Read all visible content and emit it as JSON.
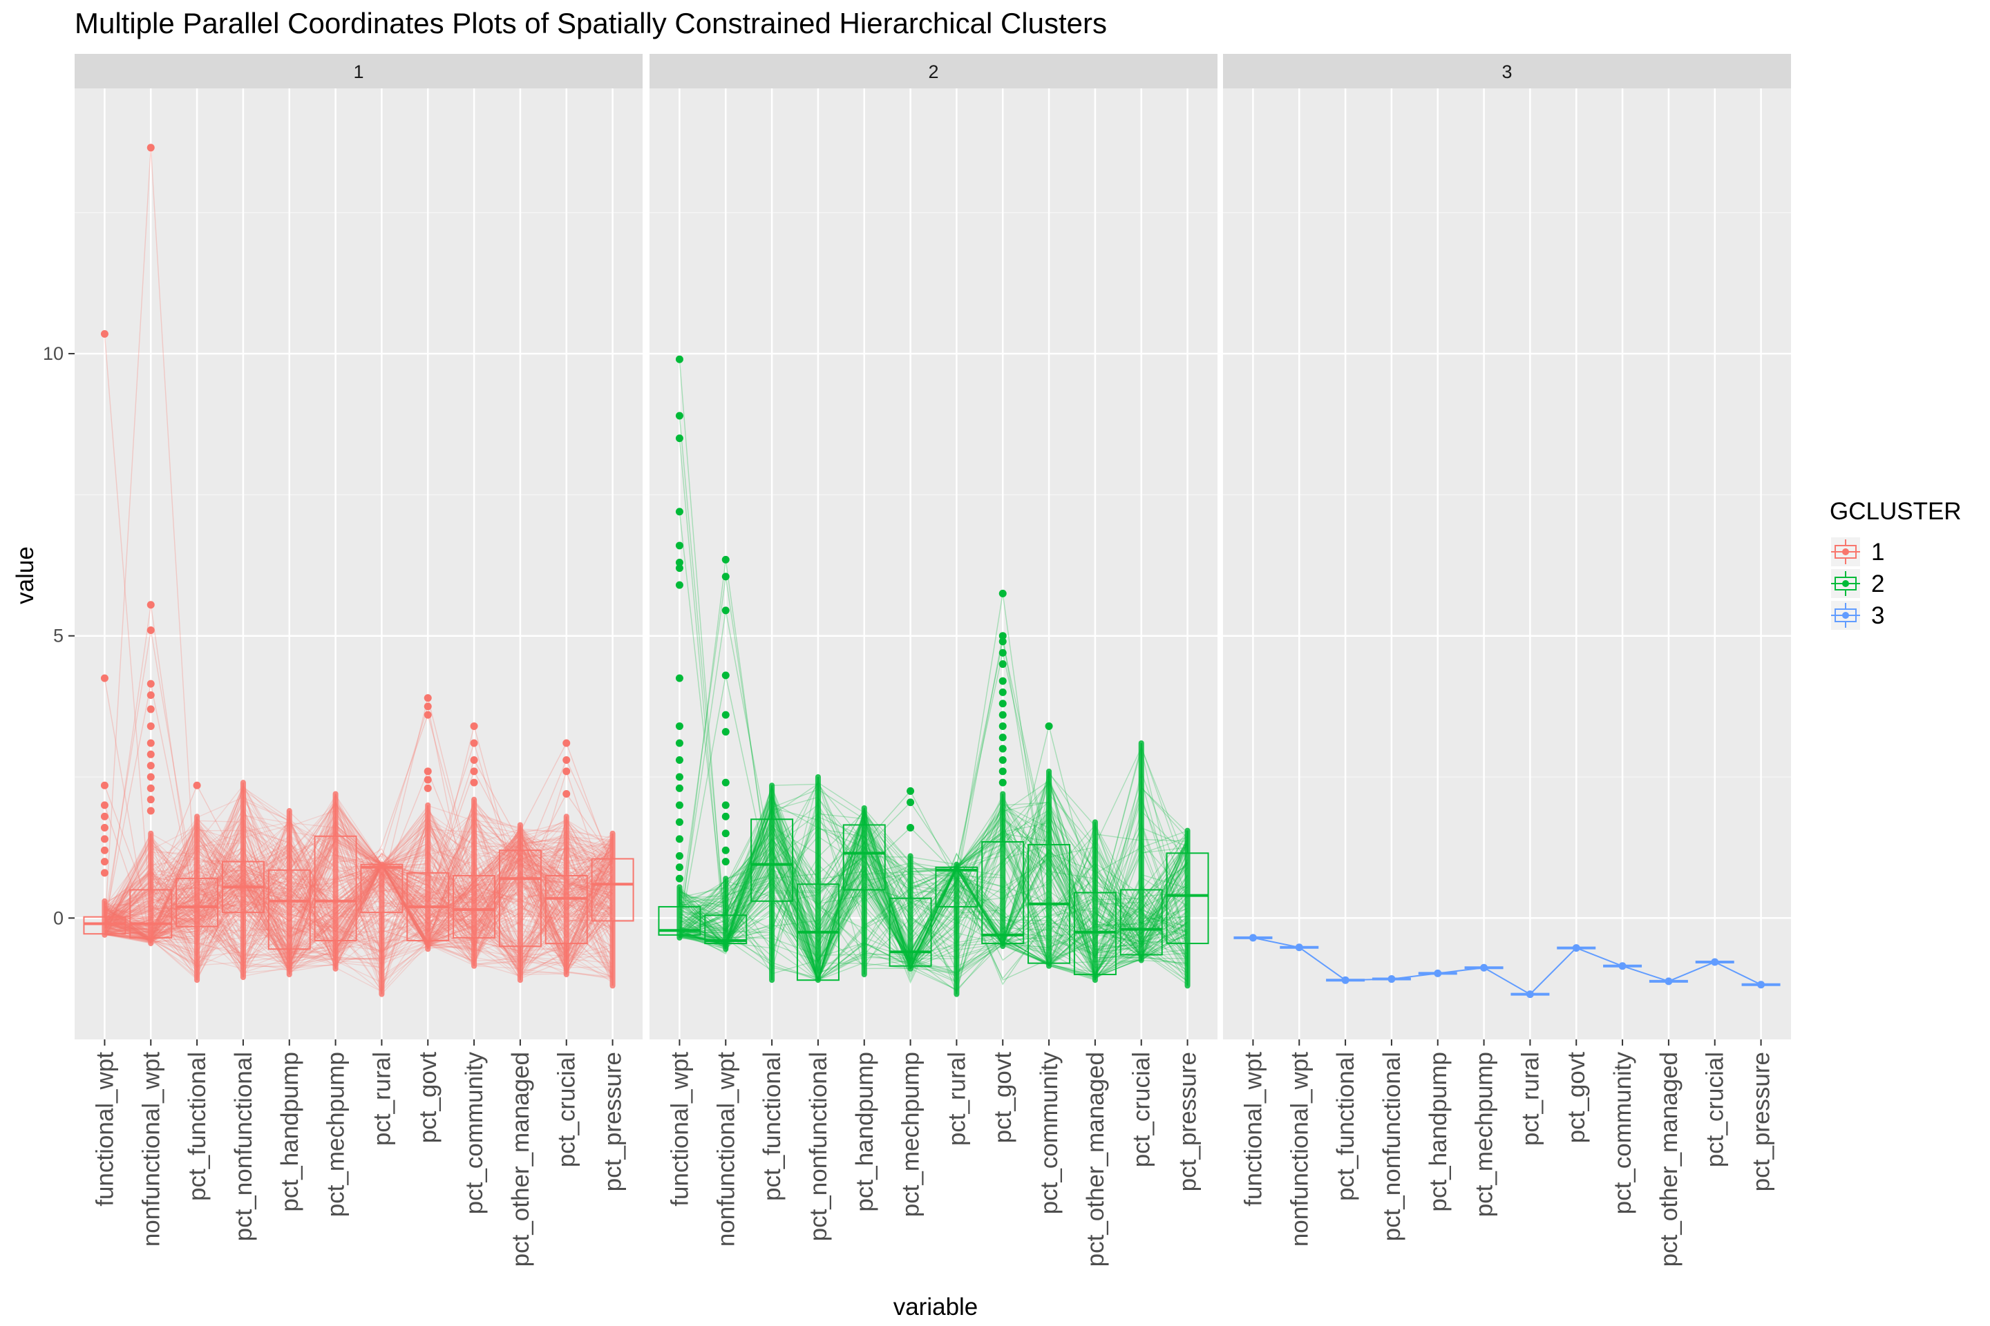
{
  "chart_data": {
    "type": "parallel_coordinates_boxplot",
    "title": "Multiple Parallel Coordinates Plots of Spatially Constrained Hierarchical Clusters",
    "xlabel": "variable",
    "ylabel": "value",
    "ylim": [
      -2.15,
      14.7
    ],
    "yticks": [
      0,
      5,
      10
    ],
    "grid": true,
    "legend": {
      "title": "GCLUSTER",
      "position": "right",
      "entries": [
        "1",
        "2",
        "3"
      ]
    },
    "colors": {
      "1": "#F8766D",
      "2": "#00BA38",
      "3": "#619CFF"
    },
    "variables": [
      "functional_wpt",
      "nonfunctional_wpt",
      "pct_functional",
      "pct_nonfunctional",
      "pct_handpump",
      "pct_mechpump",
      "pct_rural",
      "pct_govt",
      "pct_community",
      "pct_other_managed",
      "pct_crucial",
      "pct_pressure"
    ],
    "panels": [
      {
        "label": "1",
        "cluster": "1",
        "box_stats": [
          [
            -0.3,
            -0.28,
            -0.1,
            0.02,
            0.3
          ],
          [
            -0.45,
            -0.35,
            -0.1,
            0.5,
            1.5
          ],
          [
            -1.1,
            -0.15,
            0.2,
            0.7,
            1.8
          ],
          [
            -1.05,
            0.1,
            0.55,
            1.0,
            2.4
          ],
          [
            -1.0,
            -0.55,
            0.3,
            0.85,
            1.9
          ],
          [
            -0.9,
            -0.4,
            0.3,
            1.45,
            2.2
          ],
          [
            -1.35,
            0.1,
            0.9,
            0.95,
            0.95
          ],
          [
            -0.55,
            -0.4,
            0.2,
            0.8,
            2.0
          ],
          [
            -0.85,
            -0.35,
            0.15,
            0.75,
            2.1
          ],
          [
            -1.1,
            -0.5,
            0.7,
            1.2,
            1.65
          ],
          [
            -1.0,
            -0.45,
            0.35,
            0.75,
            1.8
          ],
          [
            -1.2,
            -0.05,
            0.6,
            1.05,
            1.5
          ]
        ],
        "outliers": [
          [
            10.35,
            4.25,
            2.35,
            2.0,
            1.8,
            1.6,
            1.4,
            1.2,
            1.0,
            0.8
          ],
          [
            13.65,
            5.55,
            5.1,
            4.15,
            3.95,
            3.7,
            3.4,
            3.1,
            2.9,
            2.7,
            2.5,
            2.3,
            2.1,
            1.9
          ],
          [
            2.35
          ],
          [],
          [],
          [],
          [],
          [
            3.9,
            3.75,
            3.6,
            2.6,
            2.45,
            2.3
          ],
          [
            3.4,
            3.1,
            2.8,
            2.6,
            2.4
          ],
          [],
          [
            3.1,
            2.8,
            2.6,
            2.2
          ],
          []
        ]
      },
      {
        "label": "2",
        "cluster": "2",
        "box_stats": [
          [
            -0.35,
            -0.3,
            -0.22,
            0.2,
            0.55
          ],
          [
            -0.55,
            -0.45,
            -0.4,
            0.05,
            0.7
          ],
          [
            -1.1,
            0.3,
            0.95,
            1.75,
            2.35
          ],
          [
            -1.1,
            -1.1,
            -0.25,
            0.6,
            2.5
          ],
          [
            -1.0,
            0.5,
            1.15,
            1.65,
            1.95
          ],
          [
            -0.9,
            -0.85,
            -0.6,
            0.35,
            1.1
          ],
          [
            -1.35,
            0.2,
            0.85,
            0.9,
            0.95
          ],
          [
            -0.5,
            -0.45,
            -0.3,
            1.35,
            2.2
          ],
          [
            -0.85,
            -0.8,
            0.25,
            1.3,
            2.6
          ],
          [
            -1.1,
            -1.0,
            -0.25,
            0.45,
            1.7
          ],
          [
            -0.75,
            -0.65,
            -0.2,
            0.5,
            3.1
          ],
          [
            -1.2,
            -0.45,
            0.4,
            1.15,
            1.55
          ]
        ],
        "outliers": [
          [
            9.9,
            8.9,
            8.5,
            7.2,
            6.6,
            6.3,
            6.2,
            5.9,
            4.25,
            3.4,
            3.1,
            2.8,
            2.5,
            2.3,
            2.0,
            1.7,
            1.4,
            1.1,
            0.9,
            0.7
          ],
          [
            6.35,
            6.05,
            5.45,
            4.3,
            3.6,
            3.3,
            2.4,
            2.0,
            1.8,
            1.5,
            1.2,
            1.0
          ],
          [],
          [],
          [],
          [
            2.25,
            2.05,
            1.6
          ],
          [],
          [
            5.75,
            5.0,
            4.9,
            4.7,
            4.5,
            4.2,
            4.0,
            3.8,
            3.6,
            3.4,
            3.2,
            3.0,
            2.8,
            2.6,
            2.4
          ],
          [
            3.4
          ],
          [],
          [],
          []
        ]
      },
      {
        "label": "3",
        "cluster": "3",
        "values": [
          -0.35,
          -0.52,
          -1.1,
          -1.08,
          -0.98,
          -0.88,
          -1.35,
          -0.53,
          -0.85,
          -1.12,
          -0.78,
          -1.18
        ]
      }
    ]
  }
}
